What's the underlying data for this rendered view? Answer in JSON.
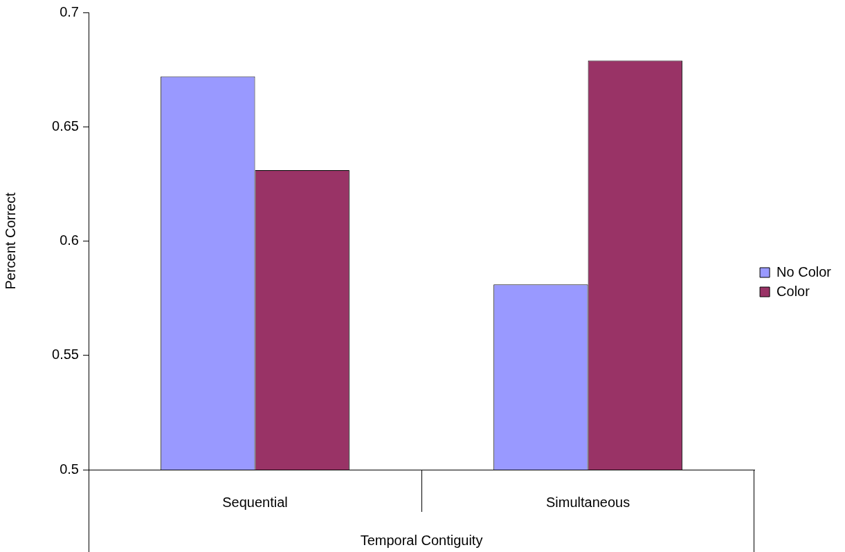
{
  "chart_data": {
    "type": "bar",
    "xlabel": "Temporal Contiguity",
    "ylabel": "Percent Correct",
    "categories": [
      "Sequential",
      "Simultaneous"
    ],
    "series": [
      {
        "name": "No Color",
        "color": "#9999ff",
        "values": [
          0.672,
          0.581
        ]
      },
      {
        "name": "Color",
        "color": "#993366",
        "values": [
          0.631,
          0.679
        ]
      }
    ],
    "ylim": [
      0.5,
      0.7
    ],
    "yticks": [
      0.5,
      0.55,
      0.6,
      0.65,
      0.7
    ],
    "grid": false,
    "legend": "right"
  }
}
